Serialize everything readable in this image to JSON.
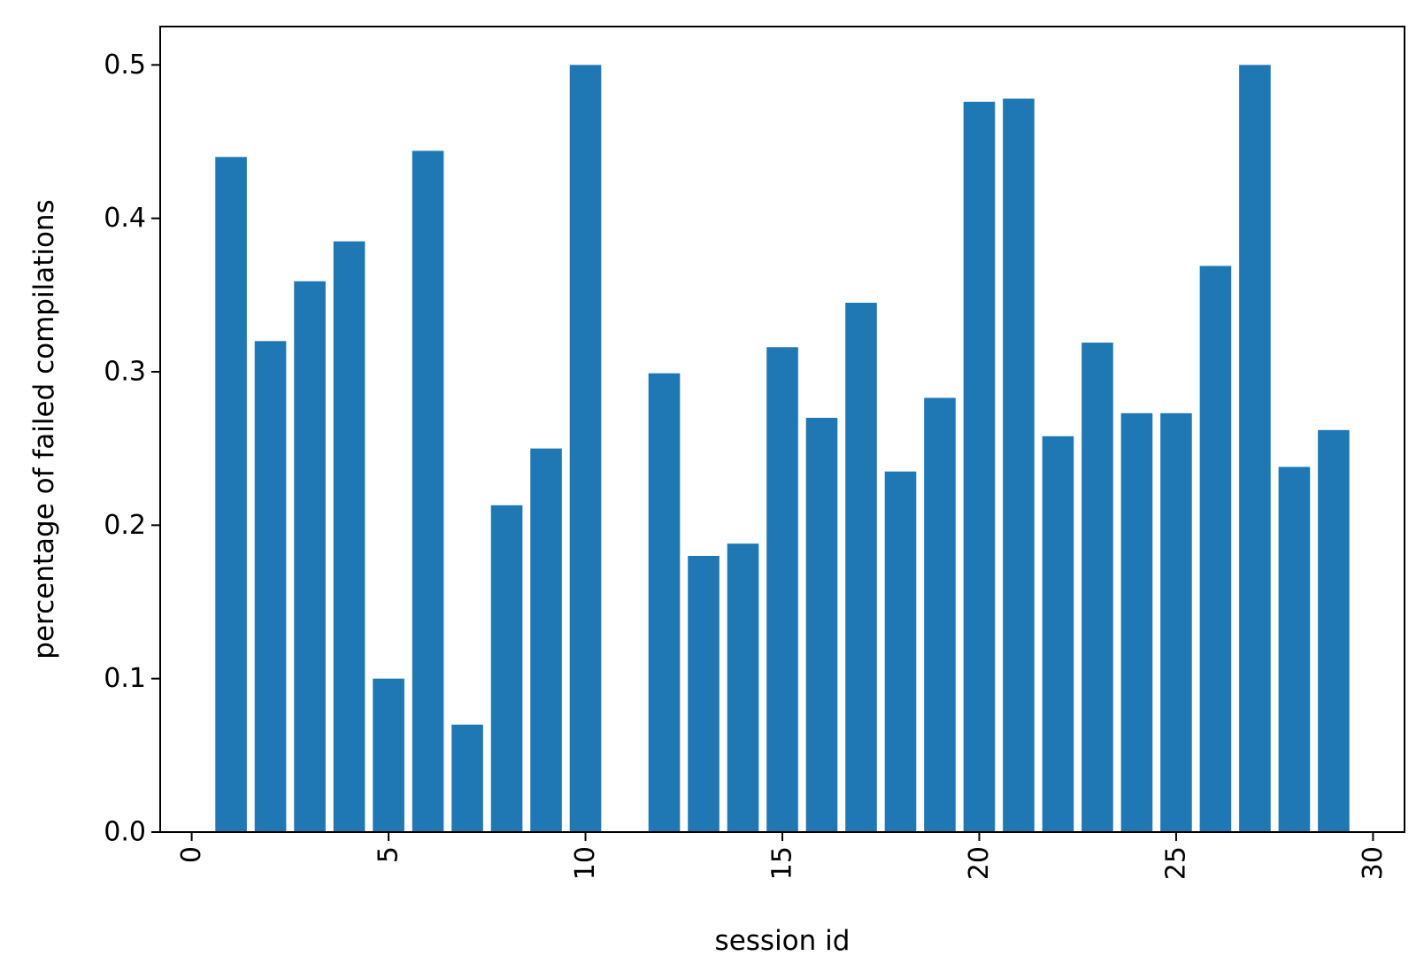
{
  "chart_data": {
    "type": "bar",
    "title": "",
    "xlabel": "session id",
    "ylabel": "percentage of failed compilations",
    "x": [
      1,
      2,
      3,
      4,
      5,
      6,
      7,
      8,
      9,
      10,
      11,
      12,
      13,
      14,
      15,
      16,
      17,
      18,
      19,
      20,
      21,
      22,
      23,
      24,
      25,
      26,
      27,
      28,
      29
    ],
    "values": [
      0.44,
      0.32,
      0.359,
      0.385,
      0.1,
      0.444,
      0.07,
      0.213,
      0.25,
      0.5,
      0.0,
      0.299,
      0.18,
      0.188,
      0.316,
      0.27,
      0.345,
      0.235,
      0.283,
      0.476,
      0.478,
      0.258,
      0.319,
      0.273,
      0.273,
      0.369,
      0.5,
      0.238,
      0.262
    ],
    "xlim": [
      -0.8,
      30.8
    ],
    "ylim": [
      0,
      0.525
    ],
    "xticks": [
      0,
      5,
      10,
      15,
      20,
      25,
      30
    ],
    "yticks": [
      0.0,
      0.1,
      0.2,
      0.3,
      0.4,
      0.5
    ],
    "xtick_labels": [
      "0",
      "5",
      "10",
      "15",
      "20",
      "25",
      "30"
    ],
    "ytick_labels": [
      "0.0",
      "0.1",
      "0.2",
      "0.3",
      "0.4",
      "0.5"
    ],
    "bar_color": "#1f77b4",
    "grid": false,
    "legend": "none"
  }
}
